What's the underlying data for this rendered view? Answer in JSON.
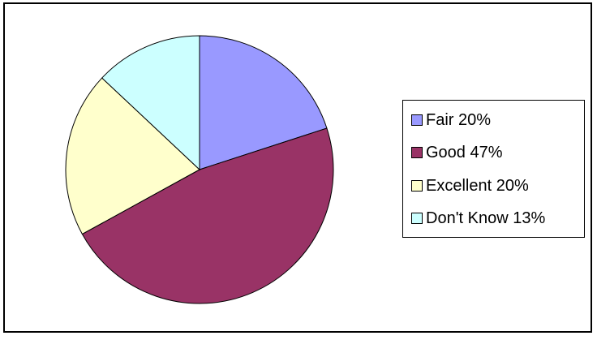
{
  "chart_data": {
    "type": "pie",
    "title": "",
    "legend_position": "right",
    "slice_order": "clockwise from 12 o'clock",
    "slices": [
      {
        "label": "Fair 20%",
        "value": 20,
        "color": "#9999ff"
      },
      {
        "label": "Good 47%",
        "value": 47,
        "color": "#993366"
      },
      {
        "label": "Excellent 20%",
        "value": 20,
        "color": "#ffffcc"
      },
      {
        "label": "Don't Know 13%",
        "value": 13,
        "color": "#ccffff"
      }
    ]
  }
}
